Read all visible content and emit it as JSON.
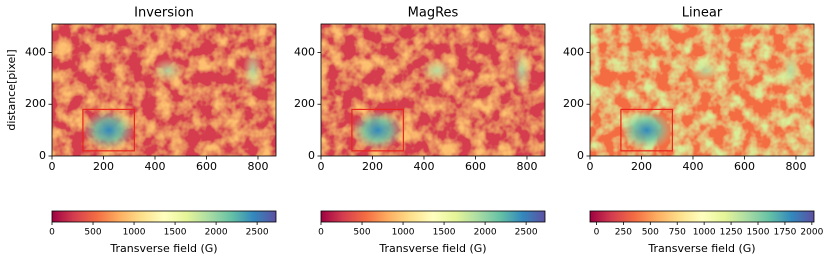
{
  "chart_data": [
    {
      "type": "heatmap",
      "title": "Inversion",
      "ylabel": "distance[pixel]",
      "xlim": [
        0,
        870
      ],
      "ylim": [
        0,
        510
      ],
      "xticks": [
        0,
        200,
        400,
        600,
        800
      ],
      "yticks": [
        0,
        200,
        400
      ],
      "box": {
        "x": [
          120,
          320
        ],
        "y": [
          20,
          180
        ],
        "color": "#e8251f"
      },
      "colormap": [
        "#9e0142",
        "#d53e4f",
        "#f46d43",
        "#fdae61",
        "#fee08b",
        "#ffffbf",
        "#e6f598",
        "#abdda4",
        "#66c2a5",
        "#3288bd",
        "#5e4fa2"
      ],
      "colorbar": {
        "label": "Transverse field (G)",
        "lim": [
          0,
          2730
        ],
        "ticks": [
          0,
          500,
          1000,
          1500,
          2000,
          2500
        ]
      }
    },
    {
      "type": "heatmap",
      "title": "MagRes",
      "xlim": [
        0,
        870
      ],
      "ylim": [
        0,
        510
      ],
      "xticks": [
        0,
        200,
        400,
        600,
        800
      ],
      "yticks": [
        0,
        200,
        400
      ],
      "box": {
        "x": [
          120,
          320
        ],
        "y": [
          20,
          180
        ],
        "color": "#e8251f"
      },
      "colormap": [
        "#9e0142",
        "#d53e4f",
        "#f46d43",
        "#fdae61",
        "#fee08b",
        "#ffffbf",
        "#e6f598",
        "#abdda4",
        "#66c2a5",
        "#3288bd",
        "#5e4fa2"
      ],
      "colorbar": {
        "label": "Transverse field (G)",
        "lim": [
          0,
          2730
        ],
        "ticks": [
          0,
          500,
          1000,
          1500,
          2000,
          2500
        ]
      }
    },
    {
      "type": "heatmap",
      "title": "Linear",
      "xlim": [
        0,
        870
      ],
      "ylim": [
        0,
        510
      ],
      "xticks": [
        0,
        200,
        400,
        600,
        800
      ],
      "yticks": [
        0,
        200,
        400
      ],
      "box": {
        "x": [
          120,
          320
        ],
        "y": [
          20,
          180
        ],
        "color": "#e8251f"
      },
      "colormap": [
        "#9e0142",
        "#d53e4f",
        "#f46d43",
        "#fdae61",
        "#fee08b",
        "#ffffbf",
        "#e6f598",
        "#abdda4",
        "#66c2a5",
        "#3288bd",
        "#5e4fa2"
      ],
      "colorbar": {
        "label": "Transverse field (G)",
        "lim": [
          -60,
          2020
        ],
        "ticks": [
          0,
          250,
          500,
          750,
          1000,
          1250,
          1500,
          1750,
          2000
        ]
      }
    }
  ]
}
